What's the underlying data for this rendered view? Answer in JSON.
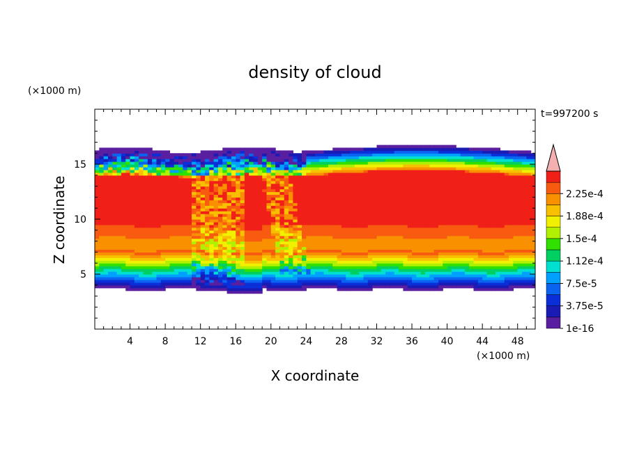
{
  "chart_data": {
    "type": "heatmap",
    "title": "density of cloud",
    "xlabel": "X coordinate",
    "ylabel": "Z coordinate",
    "x_unit": "(×1000 m)",
    "y_unit": "(×1000 m)",
    "time_label": "t=997200 s",
    "xlim": [
      0,
      50
    ],
    "ylim": [
      0,
      20
    ],
    "x_ticks": [
      4,
      8,
      12,
      16,
      20,
      24,
      28,
      32,
      36,
      40,
      44,
      48
    ],
    "y_ticks": [
      5,
      10,
      15
    ],
    "colorbar": {
      "levels": [
        1e-16,
        1.875e-05,
        3.75e-05,
        5.625e-05,
        7.5e-05,
        9.375e-05,
        0.0001125,
        0.00013125,
        0.00015,
        0.00016875,
        0.0001875,
        0.00020625,
        0.000225,
        0.00024375
      ],
      "labels": [
        "1e-16",
        "3.75e-5",
        "7.5e-5",
        "1.12e-4",
        "1.5e-4",
        "1.88e-4",
        "2.25e-4"
      ],
      "colors": [
        "#5a1fa0",
        "#1a1ab4",
        "#0a2fd8",
        "#0a64f0",
        "#00a0ff",
        "#00e0d0",
        "#00d060",
        "#30e000",
        "#b0f000",
        "#f0f000",
        "#f8c000",
        "#f89000",
        "#f85a10",
        "#f02018"
      ],
      "over_color": "#f4b0b0"
    },
    "field_description": "cloud layer between z~3.5 and ~16.5 km across domain; convective turbulent column near x 12-20; densest (red) core between z~8 and ~15 km"
  }
}
